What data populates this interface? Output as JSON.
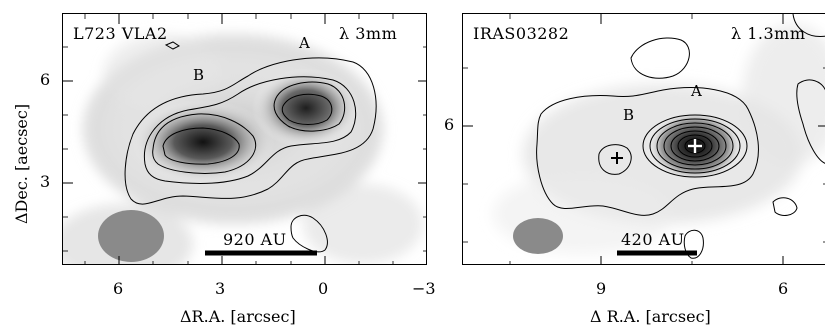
{
  "left_panel": {
    "source": "L723 VLA2",
    "wavelength": "λ 3mm",
    "peak_a": "A",
    "peak_b": "B",
    "scalebar": "920 AU",
    "ylabel": "ΔDec. [aecsec]",
    "xlabel": "ΔR.A. [arcsec]",
    "xticks": [
      "6",
      "3",
      "0",
      "−3"
    ],
    "yticks": [
      "6",
      "3"
    ]
  },
  "right_panel": {
    "source": "IRAS03282",
    "wavelength": "λ 1.3mm",
    "peak_a": "A",
    "peak_b": "B",
    "scalebar": "420 AU",
    "xlabel": "Δ R.A. [arcsec]",
    "xticks": [
      "9",
      "6"
    ],
    "yticks": [
      "6"
    ]
  },
  "colors": {
    "beam": "#8a8a8a",
    "contour": "#000000"
  }
}
